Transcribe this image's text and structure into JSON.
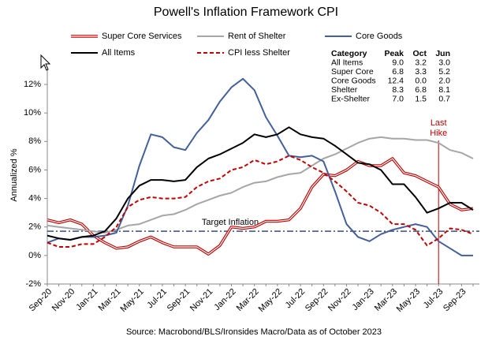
{
  "chart_data": {
    "type": "line",
    "title": "Powell's Inflation Framework CPI",
    "y_label": "Annualized %",
    "source": "Source: Macrobond/BLS/Ironsides Macro/Data as of October 2023",
    "categories": [
      "Sep-20",
      null,
      "Nov-20",
      null,
      "Jan-21",
      null,
      "Mar-21",
      null,
      "May-21",
      null,
      "Jul-21",
      null,
      "Sep-21",
      null,
      "Nov-21",
      null,
      "Jan-22",
      null,
      "Mar-22",
      null,
      "May-22",
      null,
      "Jul-22",
      null,
      "Sep-22",
      null,
      "Nov-22",
      null,
      "Jan-23",
      null,
      "Mar-23",
      null,
      "May-23",
      null,
      "Jul-23",
      null,
      "Sep-23",
      null
    ],
    "ylim": [
      -2,
      13
    ],
    "yticks": [
      {
        "value": -2,
        "label": "-2%"
      },
      {
        "value": 0,
        "label": "0%"
      },
      {
        "value": 2,
        "label": "2%"
      },
      {
        "value": 4,
        "label": "4%"
      },
      {
        "value": 6,
        "label": "6%"
      },
      {
        "value": 8,
        "label": "8%"
      },
      {
        "value": 10,
        "label": "10%"
      },
      {
        "value": 12,
        "label": "12%"
      }
    ],
    "grid": false,
    "series": [
      {
        "name": "Super Core Services",
        "color": "#c00000",
        "style": "double",
        "values": [
          2.5,
          2.3,
          2.5,
          2.2,
          1.4,
          0.9,
          0.5,
          0.6,
          1.0,
          1.3,
          0.9,
          0.6,
          0.6,
          0.6,
          0.1,
          0.7,
          2.0,
          1.9,
          2.0,
          2.4,
          2.4,
          2.5,
          3.3,
          4.8,
          5.7,
          5.6,
          6.0,
          6.6,
          6.3,
          6.3,
          6.8,
          5.8,
          5.6,
          5.2,
          4.8,
          3.6,
          3.2,
          3.3
        ]
      },
      {
        "name": "Rent of Shelter",
        "color": "#a6a6a6",
        "style": "solid",
        "values": [
          2.1,
          2.0,
          1.9,
          1.8,
          1.7,
          1.6,
          1.8,
          2.1,
          2.2,
          2.5,
          2.8,
          2.9,
          3.2,
          3.6,
          3.9,
          4.2,
          4.4,
          4.8,
          5.1,
          5.2,
          5.5,
          5.7,
          5.8,
          6.3,
          6.8,
          7.1,
          7.5,
          7.9,
          8.2,
          8.3,
          8.2,
          8.2,
          8.1,
          8.1,
          7.9,
          7.4,
          7.2,
          6.8
        ]
      },
      {
        "name": "Core Goods",
        "color": "#44609a",
        "style": "solid",
        "values": [
          0.9,
          1.2,
          1.1,
          1.3,
          1.3,
          1.4,
          1.6,
          3.5,
          6.3,
          8.5,
          8.3,
          7.6,
          7.4,
          8.6,
          9.5,
          10.8,
          11.8,
          12.4,
          11.6,
          9.7,
          8.4,
          7.0,
          6.9,
          7.0,
          6.6,
          4.5,
          2.2,
          1.3,
          1.0,
          1.5,
          1.8,
          2.0,
          2.2,
          2.0,
          1.0,
          0.5,
          0.0,
          0.0
        ]
      },
      {
        "name": "All Items",
        "color": "#000000",
        "style": "solid",
        "values": [
          1.4,
          1.2,
          1.1,
          1.3,
          1.4,
          1.7,
          2.6,
          4.0,
          4.9,
          5.3,
          5.3,
          5.2,
          5.3,
          6.2,
          6.8,
          7.1,
          7.5,
          7.9,
          8.5,
          8.3,
          8.5,
          9.0,
          8.5,
          8.3,
          8.2,
          7.7,
          7.1,
          6.5,
          6.4,
          6.0,
          5.0,
          5.0,
          4.1,
          3.0,
          3.3,
          3.7,
          3.7,
          3.2
        ]
      },
      {
        "name": "CPI less Shelter",
        "color": "#c00000",
        "style": "dash",
        "values": [
          0.9,
          0.6,
          0.6,
          0.8,
          0.8,
          1.3,
          2.0,
          3.4,
          3.9,
          4.1,
          4.0,
          4.0,
          4.1,
          4.8,
          5.2,
          5.4,
          6.0,
          6.2,
          6.7,
          6.4,
          6.6,
          7.0,
          6.7,
          6.2,
          5.8,
          5.2,
          4.5,
          3.7,
          3.5,
          3.0,
          2.2,
          2.2,
          1.8,
          0.7,
          1.2,
          1.9,
          1.8,
          1.5
        ]
      }
    ],
    "target": {
      "label": "Target Inflation",
      "value": 1.7,
      "color": "#3a4f7a"
    },
    "last_hike": {
      "lines": [
        "Last",
        "Hike"
      ],
      "x": "Jul-23",
      "color": "#c00000"
    },
    "table": {
      "header": [
        "Category",
        "Peak",
        "Oct",
        "Jun"
      ],
      "rows": [
        [
          "All Items",
          "9.0",
          "3.2",
          "3.0"
        ],
        [
          "Super Core",
          "6.8",
          "3.3",
          "5.2"
        ],
        [
          "Core Goods",
          "12.4",
          "0.0",
          "2.0"
        ],
        [
          "Shelter",
          "8.3",
          "6.8",
          "8.1"
        ],
        [
          "Ex-Shelter",
          "7.0",
          "1.5",
          "0.7"
        ]
      ]
    }
  }
}
